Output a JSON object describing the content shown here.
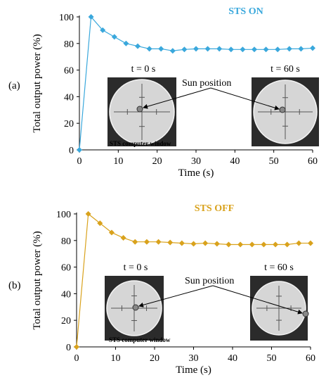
{
  "chart_data": [
    {
      "type": "line",
      "panel_label": "(a)",
      "title": "STS ON",
      "xlabel": "Time (s)",
      "ylabel": "Total output power (%)",
      "xlim": [
        0,
        60
      ],
      "ylim": [
        0,
        100
      ],
      "xticks": [
        0,
        10,
        20,
        30,
        40,
        50,
        60
      ],
      "yticks": [
        0,
        20,
        40,
        60,
        80,
        100
      ],
      "color": "#3aa8dc",
      "marker": "diamond",
      "x": [
        0,
        3,
        6,
        9,
        12,
        15,
        18,
        21,
        24,
        27,
        30,
        33,
        36,
        39,
        42,
        45,
        48,
        51,
        54,
        57,
        60
      ],
      "values": [
        0,
        100,
        90,
        85,
        80,
        78,
        76,
        76,
        74.5,
        75.5,
        76,
        76,
        76,
        75.5,
        75.5,
        75.5,
        75.5,
        75.5,
        76,
        76,
        76.5
      ],
      "annotations": {
        "inset_left_label": "t = 0 s",
        "inset_right_label": "t = 60 s",
        "sun_label": "Sun position",
        "caption": "STS computer window"
      }
    },
    {
      "type": "line",
      "panel_label": "(b)",
      "title": "STS OFF",
      "xlabel": "Time (s)",
      "ylabel": "Total output power (%)",
      "xlim": [
        0,
        60
      ],
      "ylim": [
        0,
        100
      ],
      "xticks": [
        0,
        10,
        20,
        30,
        40,
        50,
        60
      ],
      "yticks": [
        0,
        20,
        40,
        60,
        80,
        100
      ],
      "color": "#d9a21c",
      "marker": "diamond",
      "x": [
        0,
        3,
        6,
        9,
        12,
        15,
        18,
        21,
        24,
        27,
        30,
        33,
        36,
        39,
        42,
        45,
        48,
        51,
        54,
        57,
        60
      ],
      "values": [
        0,
        100,
        93,
        86,
        82,
        79,
        79,
        79,
        78.5,
        78,
        77.5,
        78,
        77.5,
        77,
        77,
        77,
        77,
        77,
        77,
        78,
        78
      ],
      "annotations": {
        "inset_left_label": "t = 0 s",
        "inset_right_label": "t = 60 s",
        "sun_label": "Sun position",
        "caption": "STS computer window"
      }
    }
  ]
}
